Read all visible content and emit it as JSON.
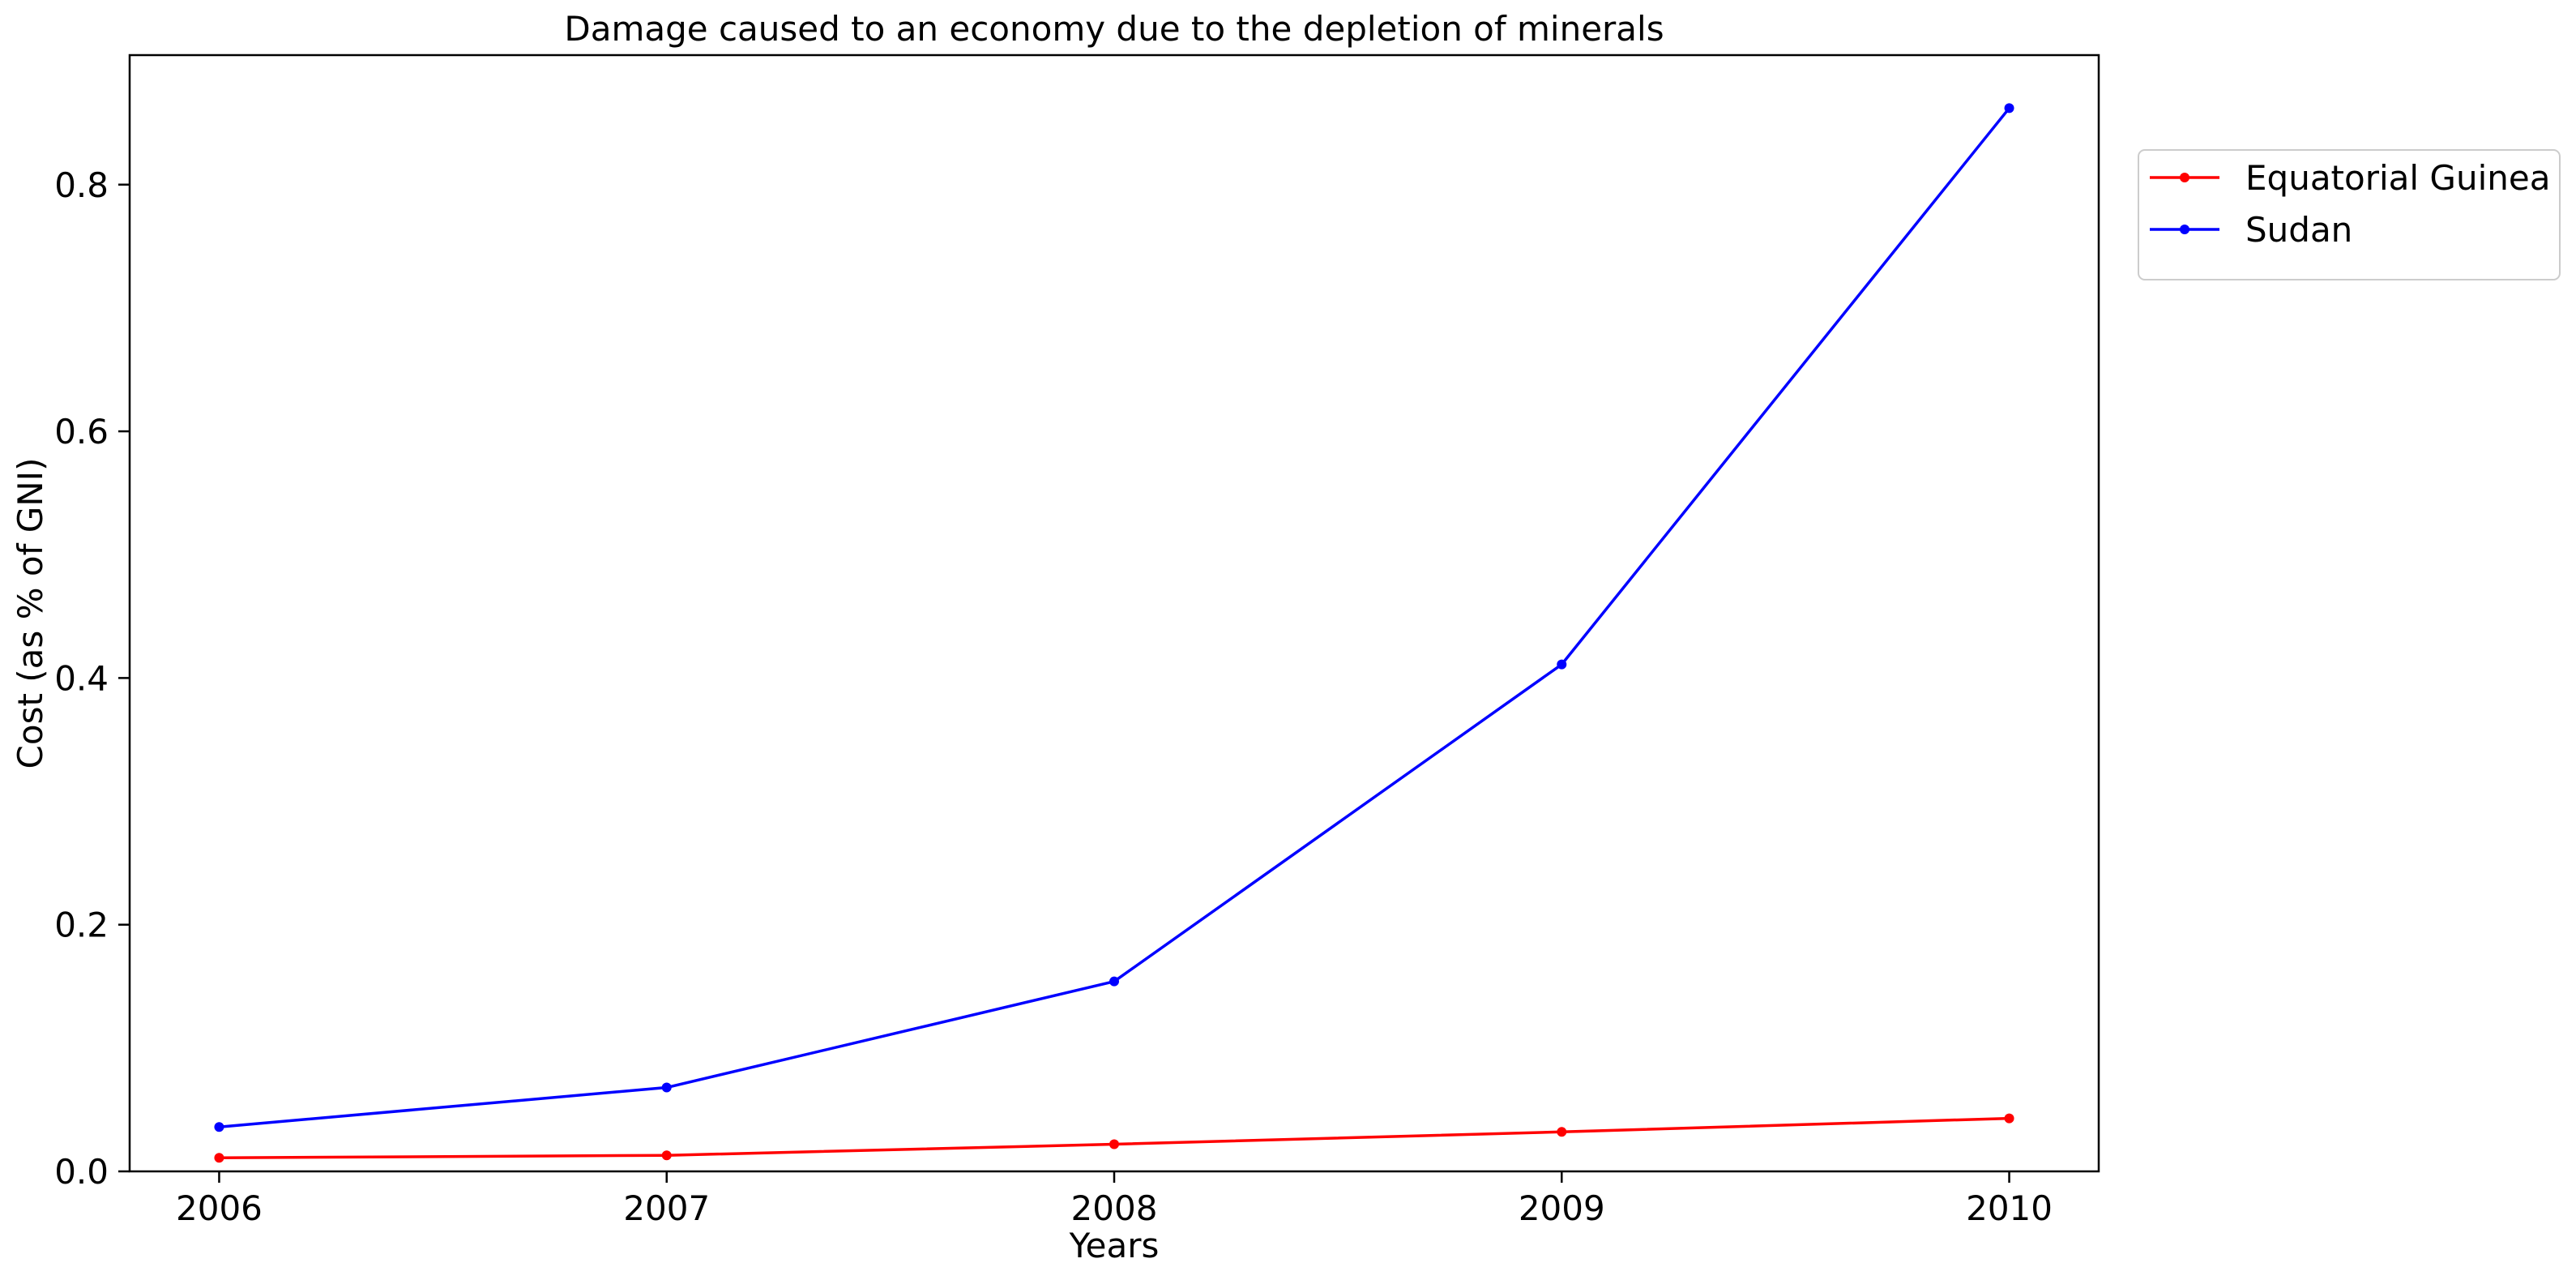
{
  "chart_data": {
    "type": "line",
    "title": "Damage caused to an economy due to the depletion of minerals",
    "xlabel": "Years",
    "ylabel": "Cost (as % of GNI)",
    "x": [
      "2006",
      "2007",
      "2008",
      "2009",
      "2010"
    ],
    "xlim": [
      2005.8,
      2010.2
    ],
    "ylim": [
      0,
      0.905
    ],
    "yticks": [
      "0.0",
      "0.2",
      "0.4",
      "0.6",
      "0.8"
    ],
    "grid": false,
    "legend_position": "outside-top-right",
    "series": [
      {
        "name": "Equatorial Guinea",
        "color": "#ff0000",
        "values": [
          0.011,
          0.013,
          0.022,
          0.032,
          0.043
        ]
      },
      {
        "name": "Sudan",
        "color": "#0000ff",
        "values": [
          0.036,
          0.068,
          0.154,
          0.411,
          0.862
        ]
      }
    ]
  }
}
